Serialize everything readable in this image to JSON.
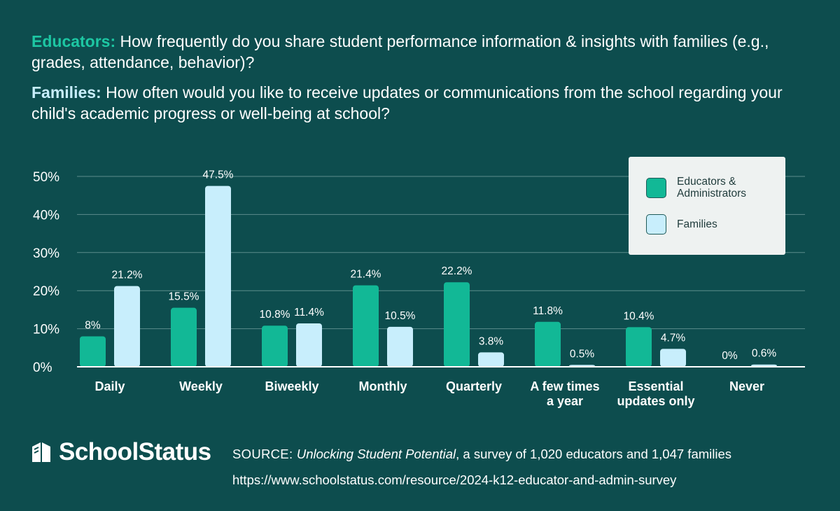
{
  "question_educators": {
    "lead": "Educators:",
    "text": " How frequently do you share student performance information & insights with families (e.g., grades, attendance, behavior)?"
  },
  "question_families": {
    "lead": "Families:",
    "text": " How often would you like to receive updates or communications from the school regarding your child's academic progress or well-being at school?"
  },
  "legend": {
    "educators": "Educators & Administrators",
    "families": "Families"
  },
  "colors": {
    "background": "#0d4d4e",
    "educators": "#12b896",
    "families": "#c8eefc",
    "educators_label": "#1dc7a3",
    "families_label": "#c8eefc"
  },
  "chart_data": {
    "type": "bar",
    "categories": [
      [
        "Daily"
      ],
      [
        "Weekly"
      ],
      [
        "Biweekly"
      ],
      [
        "Monthly"
      ],
      [
        "Quarterly"
      ],
      [
        "A few times",
        "a year"
      ],
      [
        "Essential",
        "updates only"
      ],
      [
        "Never"
      ]
    ],
    "series": [
      {
        "name": "Educators & Administrators",
        "values": [
          8,
          15.5,
          10.8,
          21.4,
          22.2,
          11.8,
          10.4,
          0
        ],
        "labels": [
          "8%",
          "15.5%",
          "10.8%",
          "21.4%",
          "22.2%",
          "11.8%",
          "10.4%",
          "0%"
        ]
      },
      {
        "name": "Families",
        "values": [
          21.2,
          47.5,
          11.4,
          10.5,
          3.8,
          0.5,
          4.7,
          0.6
        ],
        "labels": [
          "21.2%",
          "47.5%",
          "11.4%",
          "10.5%",
          "3.8%",
          "0.5%",
          "4.7%",
          "0.6%"
        ]
      }
    ],
    "yticks": [
      "0%",
      "10%",
      "20%",
      "30%",
      "40%",
      "50%"
    ],
    "ytick_values": [
      0,
      10,
      20,
      30,
      40,
      50
    ],
    "ylim": [
      0,
      50
    ],
    "grid": true,
    "legend_position": "top-right"
  },
  "brand": {
    "name": "SchoolStatus",
    "icon": "book-icon"
  },
  "source": {
    "prefix": "SOURCE: ",
    "title": "Unlocking Student Potential",
    "rest": ", a survey of 1,020 educators and 1,047 families",
    "url": "https://www.schoolstatus.com/resource/2024-k12-educator-and-admin-survey"
  }
}
